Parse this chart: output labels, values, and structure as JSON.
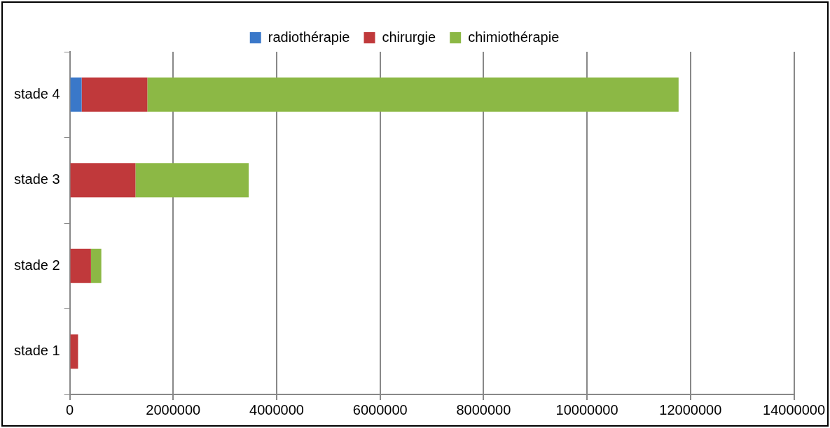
{
  "chart_data": {
    "type": "bar",
    "orientation": "horizontal",
    "stacked": true,
    "categories": [
      "stade 4",
      "stade 3",
      "stade 2",
      "stade 1"
    ],
    "series": [
      {
        "name": "radiothérapie",
        "color": "#3a78c9",
        "values": [
          230000,
          0,
          0,
          0
        ]
      },
      {
        "name": "chirurgie",
        "color": "#c0393b",
        "values": [
          1270000,
          1270000,
          410000,
          160000
        ]
      },
      {
        "name": "chimiothérapie",
        "color": "#8cb845",
        "values": [
          10270000,
          2190000,
          200000,
          0
        ]
      }
    ],
    "xlim": [
      0,
      14000000
    ],
    "xticks": [
      0,
      2000000,
      4000000,
      6000000,
      8000000,
      10000000,
      12000000,
      14000000
    ],
    "grid": "x",
    "legend": "top"
  }
}
